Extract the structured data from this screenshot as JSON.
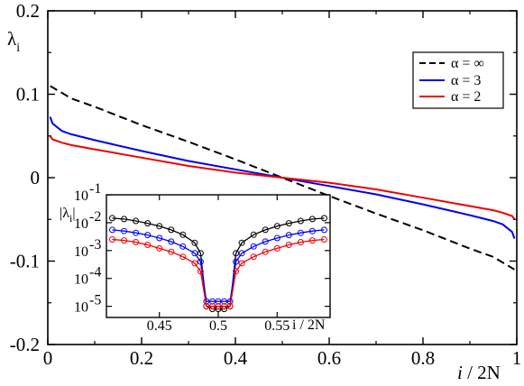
{
  "chart_data": [
    {
      "type": "line",
      "xlabel_prefix": "i",
      "xlabel_suffix": " / 2N",
      "ylabel_main": "λ",
      "ylabel_sub": "i",
      "xlim": [
        0,
        1
      ],
      "ylim": [
        -0.2,
        0.2
      ],
      "x_ticks": [
        0,
        0.2,
        0.4,
        0.6,
        0.8,
        1
      ],
      "x_tick_labels": [
        "0",
        "0.2",
        "0.4",
        "0.6",
        "0.8",
        "1"
      ],
      "y_ticks": [
        -0.2,
        -0.1,
        0,
        0.1,
        0.2
      ],
      "y_tick_labels": [
        "-0.2",
        "-0.1",
        "0",
        "0.1",
        "0.2"
      ],
      "legend_position": "top-right",
      "series": [
        {
          "name": "α = ∞",
          "color": "#000000",
          "dash": "dashed",
          "x": [
            0.005,
            0.05,
            0.1,
            0.2,
            0.3,
            0.4,
            0.5,
            0.6,
            0.7,
            0.8,
            0.9,
            0.95,
            0.995
          ],
          "y": [
            0.11,
            0.095,
            0.085,
            0.063,
            0.043,
            0.022,
            0.0,
            -0.022,
            -0.043,
            -0.063,
            -0.085,
            -0.095,
            -0.11
          ]
        },
        {
          "name": "α = 3",
          "color": "#0000ee",
          "dash": "solid",
          "x": [
            0.005,
            0.01,
            0.03,
            0.05,
            0.1,
            0.2,
            0.3,
            0.4,
            0.5,
            0.6,
            0.7,
            0.8,
            0.9,
            0.95,
            0.97,
            0.99,
            0.995
          ],
          "y": [
            0.073,
            0.065,
            0.056,
            0.052,
            0.045,
            0.032,
            0.02,
            0.01,
            0.0,
            -0.01,
            -0.02,
            -0.032,
            -0.045,
            -0.052,
            -0.056,
            -0.065,
            -0.073
          ]
        },
        {
          "name": "α = 2",
          "color": "#ee0000",
          "dash": "solid",
          "x": [
            0.005,
            0.01,
            0.03,
            0.05,
            0.1,
            0.2,
            0.3,
            0.4,
            0.5,
            0.6,
            0.7,
            0.8,
            0.9,
            0.95,
            0.97,
            0.99,
            0.995
          ],
          "y": [
            0.05,
            0.046,
            0.042,
            0.039,
            0.034,
            0.024,
            0.014,
            0.006,
            0.0,
            -0.006,
            -0.014,
            -0.024,
            -0.034,
            -0.039,
            -0.042,
            -0.046,
            -0.05
          ]
        }
      ]
    },
    {
      "type": "line",
      "ylabel_main": "|λ",
      "ylabel_sub": "i",
      "ylabel_close": "|",
      "xlabel_text": "i / 2N",
      "xlim": [
        0.405,
        0.595
      ],
      "log_scale_y": true,
      "ylim_exp": [
        -5.4,
        -1
      ],
      "x_ticks": [
        0.45,
        0.5,
        0.55
      ],
      "x_tick_labels": [
        "0.45",
        "0.5",
        "0.55"
      ],
      "y_exponents": [
        -1,
        -2,
        -3,
        -4,
        -5
      ],
      "y_tick_base": "10",
      "series": [
        {
          "name": "α = ∞",
          "color": "#000000",
          "x": [
            0.41,
            0.42,
            0.43,
            0.44,
            0.45,
            0.46,
            0.47,
            0.48,
            0.485,
            0.49,
            0.495,
            0.5,
            0.505,
            0.51,
            0.515,
            0.52,
            0.53,
            0.54,
            0.55,
            0.56,
            0.57,
            0.58,
            0.59
          ],
          "y": [
            0.0145,
            0.0135,
            0.0115,
            0.0095,
            0.0075,
            0.0055,
            0.0037,
            0.0019,
            0.0008,
            1e-05,
            8e-06,
            8e-06,
            8e-06,
            1e-05,
            0.0008,
            0.0019,
            0.0037,
            0.0055,
            0.0075,
            0.0095,
            0.0115,
            0.0135,
            0.0145
          ]
        },
        {
          "name": "α = 3",
          "color": "#0000ee",
          "x": [
            0.41,
            0.42,
            0.43,
            0.44,
            0.45,
            0.46,
            0.47,
            0.48,
            0.485,
            0.49,
            0.495,
            0.5,
            0.505,
            0.51,
            0.515,
            0.52,
            0.53,
            0.54,
            0.55,
            0.56,
            0.57,
            0.58,
            0.59
          ],
          "y": [
            0.0055,
            0.005,
            0.0043,
            0.0036,
            0.0028,
            0.0021,
            0.0014,
            0.0008,
            0.0004,
            1.5e-05,
            1.5e-05,
            1.5e-05,
            1.5e-05,
            1.5e-05,
            0.0004,
            0.0008,
            0.0014,
            0.0021,
            0.0028,
            0.0036,
            0.0043,
            0.005,
            0.0055
          ]
        },
        {
          "name": "α = 2",
          "color": "#ee0000",
          "x": [
            0.41,
            0.42,
            0.43,
            0.44,
            0.45,
            0.46,
            0.47,
            0.48,
            0.485,
            0.49,
            0.495,
            0.5,
            0.505,
            0.51,
            0.515,
            0.52,
            0.53,
            0.54,
            0.55,
            0.56,
            0.57,
            0.58,
            0.59
          ],
          "y": [
            0.0025,
            0.0023,
            0.002,
            0.0016,
            0.0012,
            0.0009,
            0.0006,
            0.00035,
            0.00018,
            1e-05,
            1e-05,
            1e-05,
            1e-05,
            1e-05,
            0.00018,
            0.00035,
            0.0006,
            0.0009,
            0.0012,
            0.0016,
            0.002,
            0.0023,
            0.0025
          ]
        }
      ]
    }
  ]
}
